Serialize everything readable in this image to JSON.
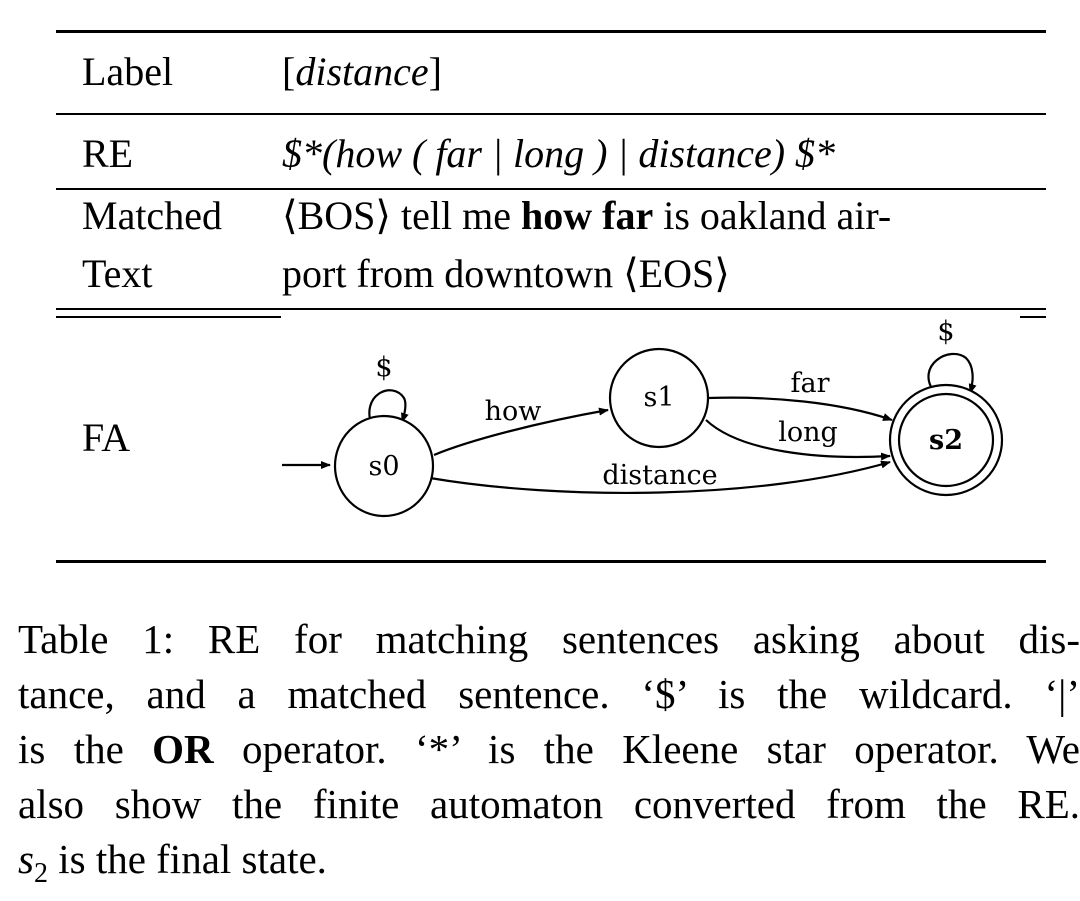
{
  "table": {
    "rows": [
      {
        "key": "Label",
        "value_parts": [
          "[",
          "distance",
          "]"
        ]
      },
      {
        "key": "RE",
        "value": "$*(how ( far | long ) | distance) $*"
      },
      {
        "key_lines": [
          "Matched",
          "Text"
        ],
        "value_line1": {
          "before": "⟨BOS⟩ tell me ",
          "bold": "how far",
          "after": " is oakland air-"
        },
        "value_line2": "port from downtown ⟨EOS⟩"
      },
      {
        "key": "FA"
      }
    ]
  },
  "automaton": {
    "states": [
      "s0",
      "s1",
      "s2"
    ],
    "final_state": "s2",
    "edges": [
      {
        "from": "s0",
        "to": "s0",
        "label": "$"
      },
      {
        "from": "s0",
        "to": "s1",
        "label": "how"
      },
      {
        "from": "s1",
        "to": "s2",
        "label": "far"
      },
      {
        "from": "s1",
        "to": "s2",
        "label": "long"
      },
      {
        "from": "s0",
        "to": "s2",
        "label": "distance"
      },
      {
        "from": "s2",
        "to": "s2",
        "label": "$"
      }
    ]
  },
  "caption": {
    "line1": "Table 1: RE for matching sentences asking about dis-",
    "line2": "tance, and a matched sentence. ‘$’ is the wildcard. ‘|’",
    "line3_pre": "is the ",
    "line3_bold": "OR",
    "line3_post": " operator. ‘*’ is the Kleene star operator. We",
    "line4": "also show the finite automaton converted from the RE.",
    "line5_sym": "s",
    "line5_sub": "2",
    "line5_post": " is the final state."
  }
}
